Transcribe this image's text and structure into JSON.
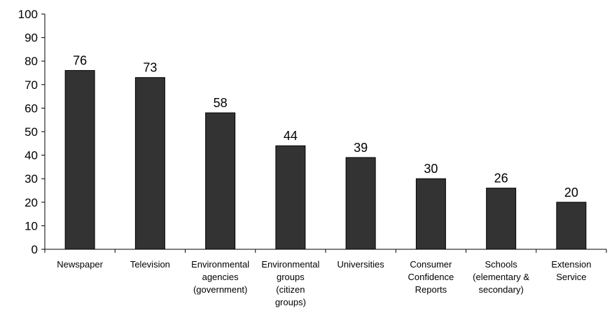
{
  "chart_data": {
    "type": "bar",
    "title": "",
    "xlabel": "",
    "ylabel": "",
    "ylim": [
      0,
      100
    ],
    "yticks": [
      0,
      10,
      20,
      30,
      40,
      50,
      60,
      70,
      80,
      90,
      100
    ],
    "grid": false,
    "legend": "none",
    "categories": [
      [
        "Newspaper"
      ],
      [
        "Television"
      ],
      [
        "Environmental",
        "agencies",
        "(government)"
      ],
      [
        "Environmental",
        "groups",
        "(citizen",
        "groups)"
      ],
      [
        "Universities"
      ],
      [
        "Consumer",
        "Confidence",
        "Reports"
      ],
      [
        "Schools",
        "(elementary &",
        "secondary)"
      ],
      [
        "Extension",
        "Service"
      ]
    ],
    "values": [
      76,
      73,
      58,
      44,
      39,
      30,
      26,
      20
    ],
    "colors": {
      "bar": "#333333",
      "bar_stroke": "#000000"
    }
  }
}
